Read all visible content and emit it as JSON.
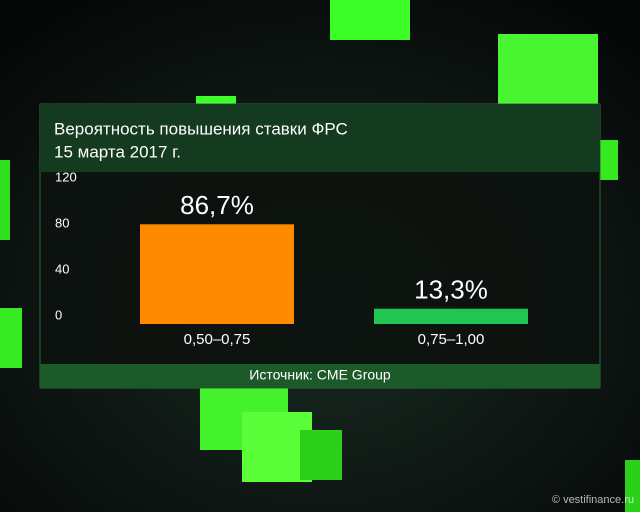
{
  "chart_data": {
    "type": "bar",
    "title": "Вероятность повышения ставки ФРС",
    "subtitle": "15 марта 2017 г.",
    "categories": [
      "0,50–0,75",
      "0,75–1,00"
    ],
    "values": [
      86.7,
      13.3
    ],
    "value_labels": [
      "86,7%",
      "13,3%"
    ],
    "colors": [
      "#ff8a00",
      "#23c552"
    ],
    "ylim": [
      0,
      120
    ],
    "yticks": [
      0,
      40,
      80,
      120
    ],
    "source": "Источник: CME Group",
    "watermark": "© vestifinance.ru"
  }
}
